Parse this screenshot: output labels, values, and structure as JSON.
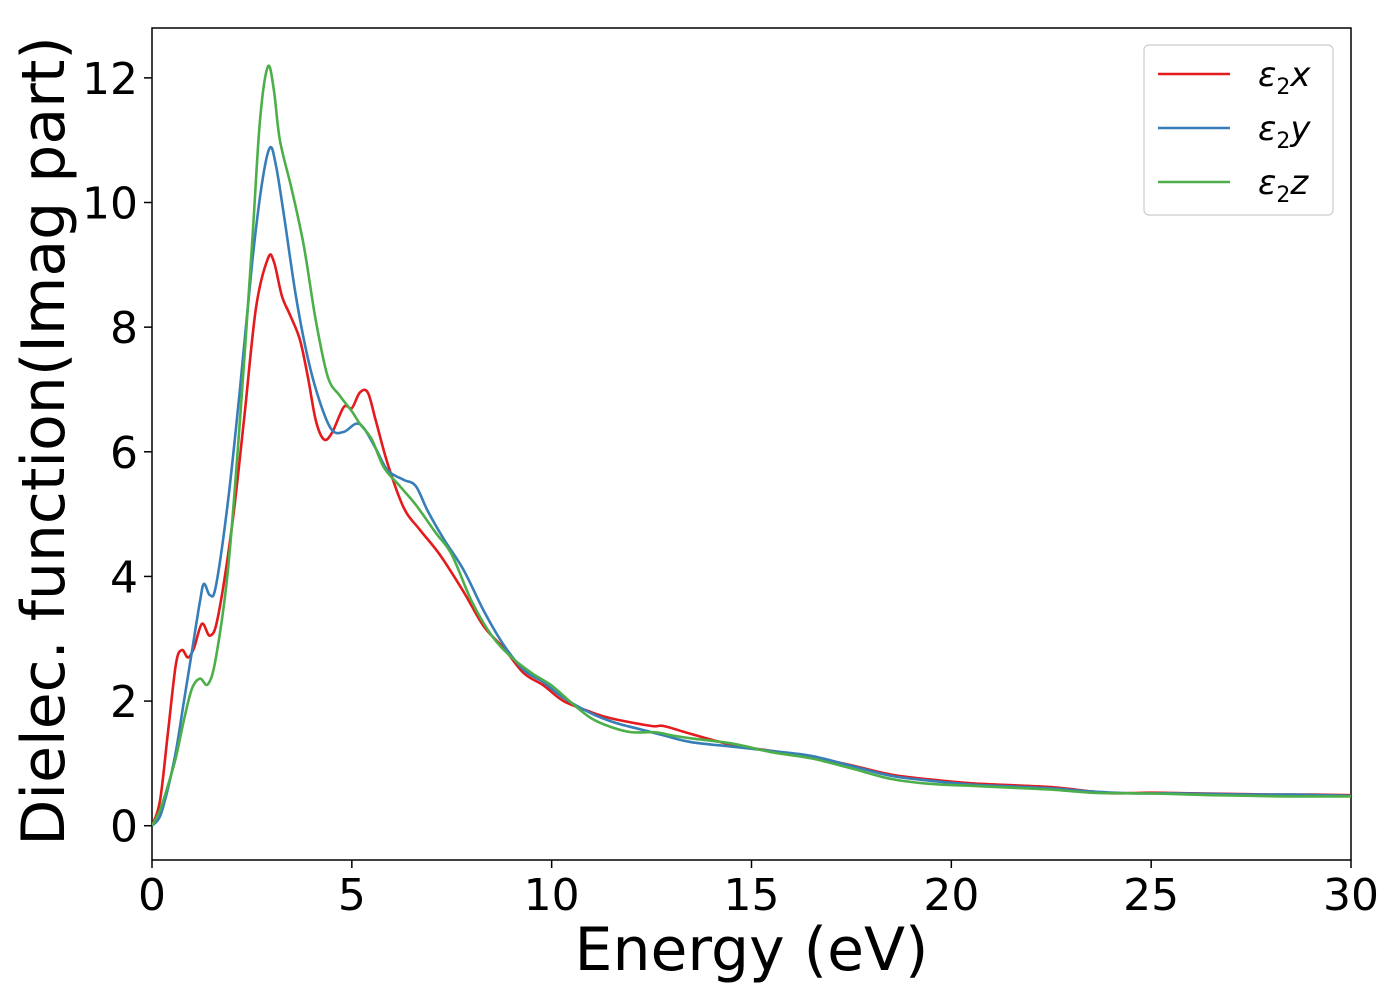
{
  "chart_data": {
    "type": "line",
    "title": "",
    "xlabel": "Energy (eV)",
    "ylabel": "Dielec. function(Imag part)",
    "xlim": [
      0,
      30
    ],
    "ylim": [
      -0.55,
      12.8
    ],
    "xticks": [
      0,
      5,
      10,
      15,
      20,
      25,
      30
    ],
    "yticks": [
      0,
      2,
      4,
      6,
      8,
      10,
      12
    ],
    "grid": false,
    "legend_position": "top-right",
    "series": [
      {
        "name": "ε2x",
        "legend": {
          "base": "ε",
          "sub": "2",
          "suffix": "x"
        },
        "color": "#e41a1c",
        "points": [
          [
            0,
            0
          ],
          [
            0.2,
            0.4
          ],
          [
            0.4,
            1.5
          ],
          [
            0.6,
            2.6
          ],
          [
            0.75,
            2.82
          ],
          [
            0.9,
            2.7
          ],
          [
            1.05,
            2.85
          ],
          [
            1.25,
            3.24
          ],
          [
            1.45,
            3.05
          ],
          [
            1.65,
            3.35
          ],
          [
            2.0,
            4.8
          ],
          [
            2.3,
            6.5
          ],
          [
            2.6,
            8.3
          ],
          [
            2.9,
            9.1
          ],
          [
            3.05,
            9.05
          ],
          [
            3.25,
            8.5
          ],
          [
            3.45,
            8.2
          ],
          [
            3.7,
            7.8
          ],
          [
            3.9,
            7.2
          ],
          [
            4.1,
            6.5
          ],
          [
            4.3,
            6.2
          ],
          [
            4.5,
            6.3
          ],
          [
            4.8,
            6.72
          ],
          [
            5.0,
            6.7
          ],
          [
            5.2,
            6.95
          ],
          [
            5.4,
            6.95
          ],
          [
            5.6,
            6.5
          ],
          [
            5.9,
            5.8
          ],
          [
            6.3,
            5.1
          ],
          [
            6.7,
            4.75
          ],
          [
            7.2,
            4.35
          ],
          [
            7.8,
            3.75
          ],
          [
            8.3,
            3.2
          ],
          [
            8.8,
            2.85
          ],
          [
            9.3,
            2.45
          ],
          [
            9.8,
            2.25
          ],
          [
            10.3,
            2.0
          ],
          [
            11.0,
            1.82
          ],
          [
            11.5,
            1.72
          ],
          [
            12.5,
            1.6
          ],
          [
            12.8,
            1.6
          ],
          [
            13.5,
            1.47
          ],
          [
            14.5,
            1.3
          ],
          [
            15.5,
            1.2
          ],
          [
            16.5,
            1.1
          ],
          [
            17.5,
            0.97
          ],
          [
            18.5,
            0.82
          ],
          [
            19.5,
            0.74
          ],
          [
            20.5,
            0.68
          ],
          [
            21.5,
            0.65
          ],
          [
            22.5,
            0.62
          ],
          [
            23.5,
            0.55
          ],
          [
            24.0,
            0.52
          ],
          [
            25.0,
            0.53
          ],
          [
            26.0,
            0.52
          ],
          [
            27.0,
            0.51
          ],
          [
            28.0,
            0.5
          ],
          [
            29.0,
            0.5
          ],
          [
            30.0,
            0.49
          ]
        ]
      },
      {
        "name": "ε2y",
        "legend": {
          "base": "ε",
          "sub": "2",
          "suffix": "y"
        },
        "color": "#377eb8",
        "points": [
          [
            0,
            0
          ],
          [
            0.2,
            0.15
          ],
          [
            0.4,
            0.6
          ],
          [
            0.6,
            1.2
          ],
          [
            0.8,
            2.0
          ],
          [
            1.0,
            2.8
          ],
          [
            1.2,
            3.6
          ],
          [
            1.3,
            3.88
          ],
          [
            1.45,
            3.7
          ],
          [
            1.6,
            3.85
          ],
          [
            1.9,
            5.2
          ],
          [
            2.2,
            7.0
          ],
          [
            2.5,
            9.0
          ],
          [
            2.75,
            10.3
          ],
          [
            2.95,
            10.88
          ],
          [
            3.1,
            10.6
          ],
          [
            3.3,
            9.8
          ],
          [
            3.6,
            8.5
          ],
          [
            3.9,
            7.5
          ],
          [
            4.2,
            6.8
          ],
          [
            4.5,
            6.35
          ],
          [
            4.8,
            6.32
          ],
          [
            5.1,
            6.45
          ],
          [
            5.3,
            6.38
          ],
          [
            5.6,
            6.05
          ],
          [
            5.9,
            5.7
          ],
          [
            6.3,
            5.55
          ],
          [
            6.6,
            5.45
          ],
          [
            6.9,
            5.05
          ],
          [
            7.3,
            4.6
          ],
          [
            7.8,
            4.1
          ],
          [
            8.3,
            3.45
          ],
          [
            8.8,
            2.9
          ],
          [
            9.3,
            2.5
          ],
          [
            9.8,
            2.3
          ],
          [
            10.3,
            2.05
          ],
          [
            11.0,
            1.8
          ],
          [
            11.6,
            1.65
          ],
          [
            12.2,
            1.55
          ],
          [
            12.8,
            1.45
          ],
          [
            13.5,
            1.34
          ],
          [
            14.5,
            1.27
          ],
          [
            15.5,
            1.2
          ],
          [
            16.5,
            1.12
          ],
          [
            17.5,
            0.96
          ],
          [
            18.5,
            0.8
          ],
          [
            19.5,
            0.72
          ],
          [
            20.5,
            0.66
          ],
          [
            21.5,
            0.63
          ],
          [
            22.5,
            0.6
          ],
          [
            23.5,
            0.55
          ],
          [
            24.5,
            0.52
          ],
          [
            25.5,
            0.52
          ],
          [
            26.5,
            0.51
          ],
          [
            27.5,
            0.5
          ],
          [
            28.5,
            0.5
          ],
          [
            30.0,
            0.48
          ]
        ]
      },
      {
        "name": "ε2z",
        "legend": {
          "base": "ε",
          "sub": "2",
          "suffix": "z"
        },
        "color": "#4daf4a",
        "points": [
          [
            0,
            0
          ],
          [
            0.2,
            0.25
          ],
          [
            0.4,
            0.65
          ],
          [
            0.6,
            1.1
          ],
          [
            0.8,
            1.7
          ],
          [
            1.0,
            2.2
          ],
          [
            1.2,
            2.36
          ],
          [
            1.4,
            2.27
          ],
          [
            1.6,
            2.7
          ],
          [
            1.9,
            4.1
          ],
          [
            2.2,
            6.5
          ],
          [
            2.5,
            9.3
          ],
          [
            2.7,
            11.3
          ],
          [
            2.9,
            12.18
          ],
          [
            3.05,
            11.8
          ],
          [
            3.2,
            11.0
          ],
          [
            3.5,
            10.2
          ],
          [
            3.8,
            9.3
          ],
          [
            4.1,
            8.1
          ],
          [
            4.4,
            7.2
          ],
          [
            4.7,
            6.9
          ],
          [
            5.0,
            6.65
          ],
          [
            5.2,
            6.45
          ],
          [
            5.5,
            6.2
          ],
          [
            5.8,
            5.75
          ],
          [
            6.2,
            5.45
          ],
          [
            6.6,
            5.15
          ],
          [
            7.1,
            4.7
          ],
          [
            7.5,
            4.35
          ],
          [
            8.0,
            3.6
          ],
          [
            8.5,
            3.05
          ],
          [
            9.0,
            2.7
          ],
          [
            9.5,
            2.45
          ],
          [
            10.0,
            2.25
          ],
          [
            10.5,
            1.97
          ],
          [
            11.0,
            1.72
          ],
          [
            11.5,
            1.58
          ],
          [
            12.0,
            1.5
          ],
          [
            12.6,
            1.5
          ],
          [
            13.0,
            1.45
          ],
          [
            13.5,
            1.4
          ],
          [
            14.5,
            1.32
          ],
          [
            15.5,
            1.18
          ],
          [
            16.5,
            1.08
          ],
          [
            17.5,
            0.92
          ],
          [
            18.5,
            0.75
          ],
          [
            19.5,
            0.67
          ],
          [
            20.5,
            0.64
          ],
          [
            21.5,
            0.61
          ],
          [
            22.5,
            0.58
          ],
          [
            23.5,
            0.53
          ],
          [
            24.5,
            0.52
          ],
          [
            25.5,
            0.51
          ],
          [
            26.5,
            0.49
          ],
          [
            27.5,
            0.48
          ],
          [
            28.5,
            0.47
          ],
          [
            30.0,
            0.47
          ]
        ]
      }
    ]
  }
}
